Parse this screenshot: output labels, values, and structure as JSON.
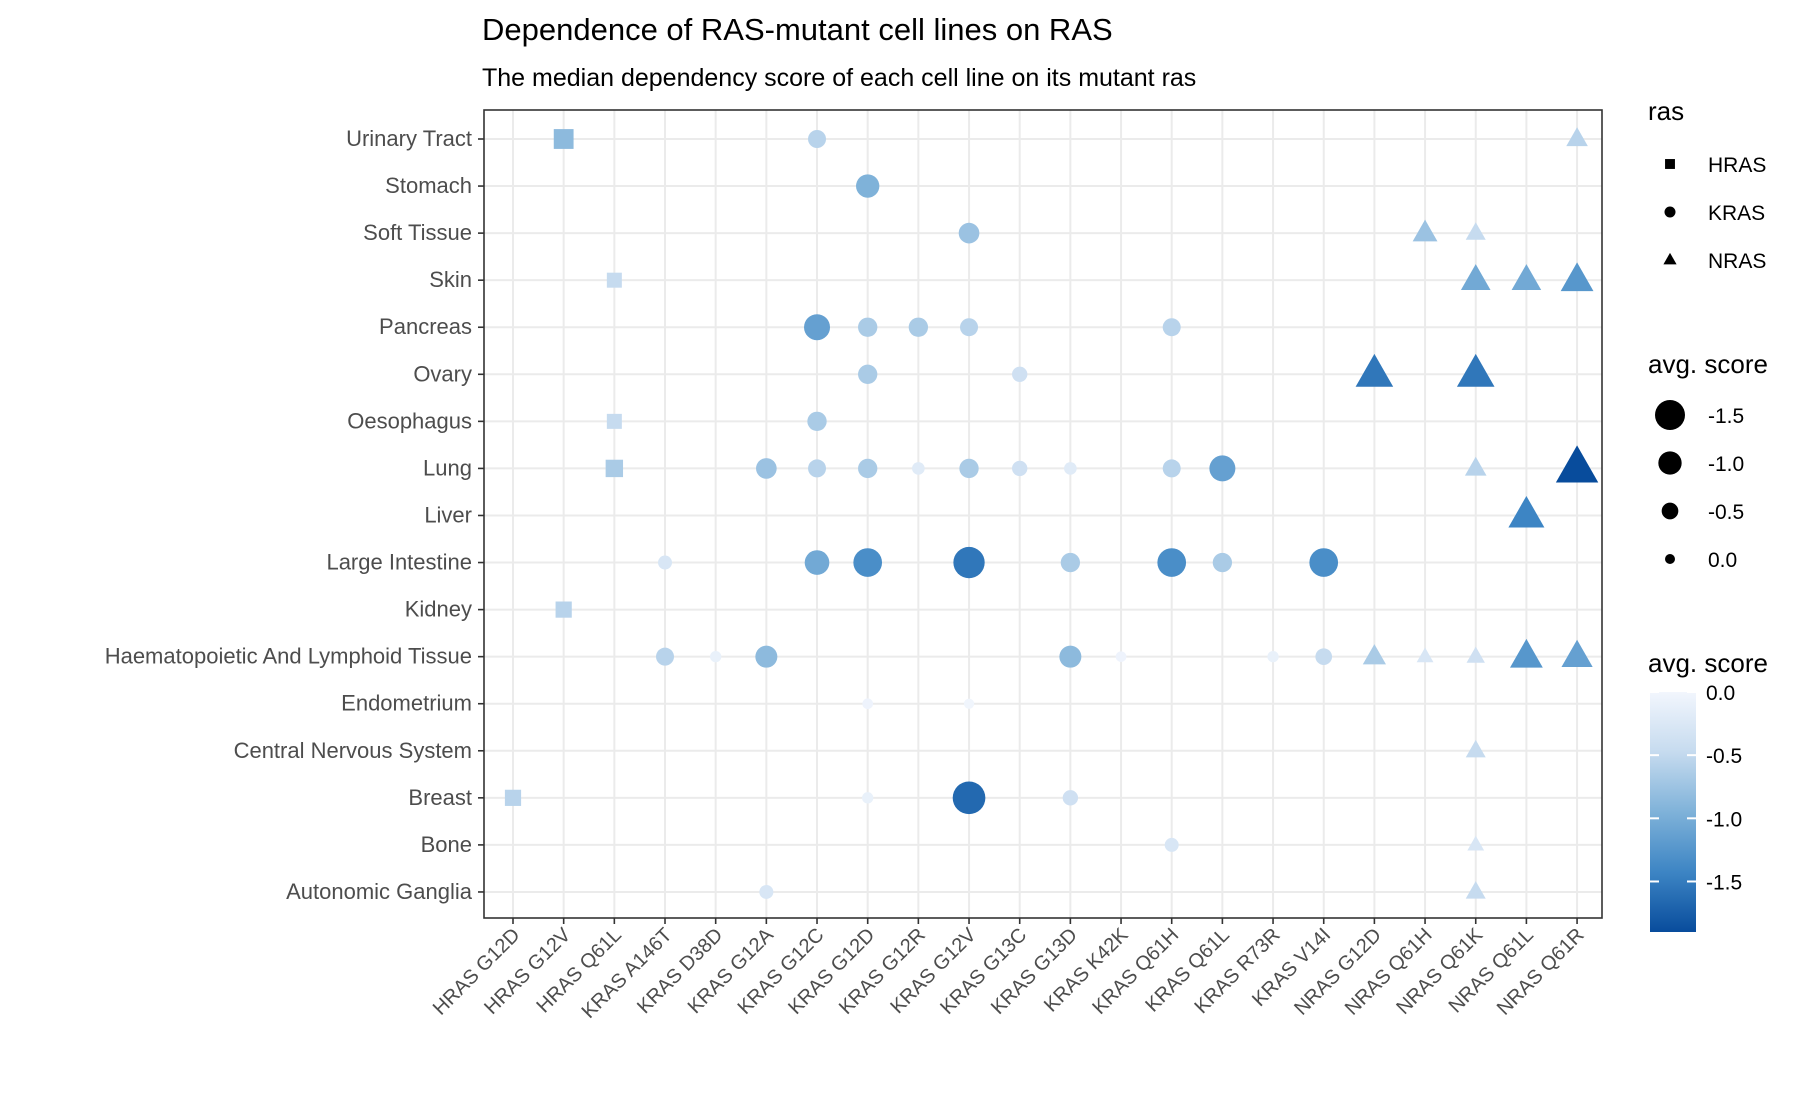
{
  "chart_data": {
    "type": "scatter",
    "title": "Dependence of RAS-mutant cell lines on RAS",
    "subtitle": "The median dependency score of each cell line on its mutant ras",
    "xlabel": "",
    "ylabel": "",
    "x_categories": [
      "HRAS G12D",
      "HRAS G12V",
      "HRAS Q61L",
      "KRAS A146T",
      "KRAS D38D",
      "KRAS G12A",
      "KRAS G12C",
      "KRAS G12D",
      "KRAS G12R",
      "KRAS G12V",
      "KRAS G13C",
      "KRAS G13D",
      "KRAS K42K",
      "KRAS Q61H",
      "KRAS Q61L",
      "KRAS R73R",
      "KRAS V14I",
      "NRAS G12D",
      "NRAS Q61H",
      "NRAS Q61K",
      "NRAS Q61L",
      "NRAS Q61R"
    ],
    "y_categories": [
      "Autonomic Ganglia",
      "Bone",
      "Breast",
      "Central Nervous System",
      "Endometrium",
      "Haematopoietic And Lymphoid Tissue",
      "Kidney",
      "Large Intestine",
      "Liver",
      "Lung",
      "Oesophagus",
      "Ovary",
      "Pancreas",
      "Skin",
      "Soft Tissue",
      "Stomach",
      "Urinary Tract"
    ],
    "grid": true,
    "points": [
      {
        "x": "HRAS G12V",
        "y": "Urinary Tract",
        "ras": "HRAS",
        "score": -0.9
      },
      {
        "x": "KRAS G12C",
        "y": "Urinary Tract",
        "ras": "KRAS",
        "score": -0.6
      },
      {
        "x": "NRAS Q61R",
        "y": "Urinary Tract",
        "ras": "NRAS",
        "score": -0.6
      },
      {
        "x": "KRAS G12D",
        "y": "Stomach",
        "ras": "KRAS",
        "score": -1.0
      },
      {
        "x": "KRAS G12V",
        "y": "Soft Tissue",
        "ras": "KRAS",
        "score": -0.8
      },
      {
        "x": "NRAS Q61H",
        "y": "Soft Tissue",
        "ras": "NRAS",
        "score": -0.8
      },
      {
        "x": "NRAS Q61K",
        "y": "Soft Tissue",
        "ras": "NRAS",
        "score": -0.5
      },
      {
        "x": "HRAS Q61L",
        "y": "Skin",
        "ras": "HRAS",
        "score": -0.5
      },
      {
        "x": "NRAS Q61K",
        "y": "Skin",
        "ras": "NRAS",
        "score": -1.1
      },
      {
        "x": "NRAS Q61L",
        "y": "Skin",
        "ras": "NRAS",
        "score": -1.1
      },
      {
        "x": "NRAS Q61R",
        "y": "Skin",
        "ras": "NRAS",
        "score": -1.3
      },
      {
        "x": "KRAS G12C",
        "y": "Pancreas",
        "ras": "KRAS",
        "score": -1.2
      },
      {
        "x": "KRAS G12D",
        "y": "Pancreas",
        "ras": "KRAS",
        "score": -0.7
      },
      {
        "x": "KRAS G12R",
        "y": "Pancreas",
        "ras": "KRAS",
        "score": -0.7
      },
      {
        "x": "KRAS G12V",
        "y": "Pancreas",
        "ras": "KRAS",
        "score": -0.6
      },
      {
        "x": "KRAS Q61H",
        "y": "Pancreas",
        "ras": "KRAS",
        "score": -0.6
      },
      {
        "x": "KRAS G12D",
        "y": "Ovary",
        "ras": "KRAS",
        "score": -0.7
      },
      {
        "x": "KRAS G13C",
        "y": "Ovary",
        "ras": "KRAS",
        "score": -0.4
      },
      {
        "x": "NRAS G12D",
        "y": "Ovary",
        "ras": "NRAS",
        "score": -1.6
      },
      {
        "x": "NRAS Q61K",
        "y": "Ovary",
        "ras": "NRAS",
        "score": -1.6
      },
      {
        "x": "HRAS Q61L",
        "y": "Oesophagus",
        "ras": "HRAS",
        "score": -0.5
      },
      {
        "x": "KRAS G12C",
        "y": "Oesophagus",
        "ras": "KRAS",
        "score": -0.7
      },
      {
        "x": "HRAS Q61L",
        "y": "Lung",
        "ras": "HRAS",
        "score": -0.7
      },
      {
        "x": "KRAS G12A",
        "y": "Lung",
        "ras": "KRAS",
        "score": -0.8
      },
      {
        "x": "KRAS G12C",
        "y": "Lung",
        "ras": "KRAS",
        "score": -0.6
      },
      {
        "x": "KRAS G12D",
        "y": "Lung",
        "ras": "KRAS",
        "score": -0.7
      },
      {
        "x": "KRAS G12R",
        "y": "Lung",
        "ras": "KRAS",
        "score": -0.2
      },
      {
        "x": "KRAS G12V",
        "y": "Lung",
        "ras": "KRAS",
        "score": -0.7
      },
      {
        "x": "KRAS G13C",
        "y": "Lung",
        "ras": "KRAS",
        "score": -0.4
      },
      {
        "x": "KRAS G13D",
        "y": "Lung",
        "ras": "KRAS",
        "score": -0.2
      },
      {
        "x": "KRAS Q61H",
        "y": "Lung",
        "ras": "KRAS",
        "score": -0.6
      },
      {
        "x": "KRAS Q61L",
        "y": "Lung",
        "ras": "KRAS",
        "score": -1.2
      },
      {
        "x": "NRAS Q61K",
        "y": "Lung",
        "ras": "NRAS",
        "score": -0.6
      },
      {
        "x": "NRAS Q61R",
        "y": "Lung",
        "ras": "NRAS",
        "score": -1.9
      },
      {
        "x": "NRAS Q61L",
        "y": "Liver",
        "ras": "NRAS",
        "score": -1.5
      },
      {
        "x": "KRAS A146T",
        "y": "Large Intestine",
        "ras": "KRAS",
        "score": -0.3
      },
      {
        "x": "KRAS G12C",
        "y": "Large Intestine",
        "ras": "KRAS",
        "score": -1.1
      },
      {
        "x": "KRAS G12D",
        "y": "Large Intestine",
        "ras": "KRAS",
        "score": -1.4
      },
      {
        "x": "KRAS G12V",
        "y": "Large Intestine",
        "ras": "KRAS",
        "score": -1.6
      },
      {
        "x": "KRAS G13D",
        "y": "Large Intestine",
        "ras": "KRAS",
        "score": -0.7
      },
      {
        "x": "KRAS Q61H",
        "y": "Large Intestine",
        "ras": "KRAS",
        "score": -1.4
      },
      {
        "x": "KRAS Q61L",
        "y": "Large Intestine",
        "ras": "KRAS",
        "score": -0.7
      },
      {
        "x": "KRAS V14I",
        "y": "Large Intestine",
        "ras": "KRAS",
        "score": -1.4
      },
      {
        "x": "HRAS G12V",
        "y": "Kidney",
        "ras": "HRAS",
        "score": -0.6
      },
      {
        "x": "KRAS A146T",
        "y": "Haematopoietic And Lymphoid Tissue",
        "ras": "KRAS",
        "score": -0.6
      },
      {
        "x": "KRAS D38D",
        "y": "Haematopoietic And Lymphoid Tissue",
        "ras": "KRAS",
        "score": -0.1
      },
      {
        "x": "KRAS G12A",
        "y": "Haematopoietic And Lymphoid Tissue",
        "ras": "KRAS",
        "score": -0.9
      },
      {
        "x": "KRAS G13D",
        "y": "Haematopoietic And Lymphoid Tissue",
        "ras": "KRAS",
        "score": -0.9
      },
      {
        "x": "KRAS K42K",
        "y": "Haematopoietic And Lymphoid Tissue",
        "ras": "KRAS",
        "score": -0.05
      },
      {
        "x": "KRAS R73R",
        "y": "Haematopoietic And Lymphoid Tissue",
        "ras": "KRAS",
        "score": -0.1
      },
      {
        "x": "KRAS V14I",
        "y": "Haematopoietic And Lymphoid Tissue",
        "ras": "KRAS",
        "score": -0.5
      },
      {
        "x": "NRAS G12D",
        "y": "Haematopoietic And Lymphoid Tissue",
        "ras": "NRAS",
        "score": -0.7
      },
      {
        "x": "NRAS Q61H",
        "y": "Haematopoietic And Lymphoid Tissue",
        "ras": "NRAS",
        "score": -0.3
      },
      {
        "x": "NRAS Q61K",
        "y": "Haematopoietic And Lymphoid Tissue",
        "ras": "NRAS",
        "score": -0.4
      },
      {
        "x": "NRAS Q61L",
        "y": "Haematopoietic And Lymphoid Tissue",
        "ras": "NRAS",
        "score": -1.3
      },
      {
        "x": "NRAS Q61R",
        "y": "Haematopoietic And Lymphoid Tissue",
        "ras": "NRAS",
        "score": -1.2
      },
      {
        "x": "KRAS G12D",
        "y": "Endometrium",
        "ras": "KRAS",
        "score": -0.05
      },
      {
        "x": "KRAS G12V",
        "y": "Endometrium",
        "ras": "KRAS",
        "score": -0.02
      },
      {
        "x": "NRAS Q61K",
        "y": "Central Nervous System",
        "ras": "NRAS",
        "score": -0.5
      },
      {
        "x": "HRAS G12D",
        "y": "Breast",
        "ras": "HRAS",
        "score": -0.6
      },
      {
        "x": "KRAS G12D",
        "y": "Breast",
        "ras": "KRAS",
        "score": -0.1
      },
      {
        "x": "KRAS G12V",
        "y": "Breast",
        "ras": "KRAS",
        "score": -1.7
      },
      {
        "x": "KRAS G13D",
        "y": "Breast",
        "ras": "KRAS",
        "score": -0.4
      },
      {
        "x": "KRAS Q61H",
        "y": "Bone",
        "ras": "KRAS",
        "score": -0.3
      },
      {
        "x": "NRAS Q61K",
        "y": "Bone",
        "ras": "NRAS",
        "score": -0.3
      },
      {
        "x": "KRAS G12A",
        "y": "Autonomic Ganglia",
        "ras": "KRAS",
        "score": -0.3
      },
      {
        "x": "NRAS Q61K",
        "y": "Autonomic Ganglia",
        "ras": "NRAS",
        "score": -0.5
      }
    ],
    "legend": {
      "placement": "right",
      "shape": {
        "title": "ras",
        "items": [
          {
            "label": "HRAS",
            "shape": "square"
          },
          {
            "label": "KRAS",
            "shape": "circle"
          },
          {
            "label": "NRAS",
            "shape": "triangle"
          }
        ]
      },
      "size": {
        "title": "avg. score",
        "items": [
          {
            "label": "-1.5",
            "value": -1.5
          },
          {
            "label": "-1.0",
            "value": -1.0
          },
          {
            "label": "-0.5",
            "value": -0.5
          },
          {
            "label": "0.0",
            "value": 0.0
          }
        ]
      },
      "color": {
        "title": "avg. score",
        "range": [
          -1.9,
          0.0
        ],
        "ticks": [
          {
            "label": "0.0",
            "value": 0.0
          },
          {
            "label": "-0.5",
            "value": -0.5
          },
          {
            "label": "-1.0",
            "value": -1.0
          },
          {
            "label": "-1.5",
            "value": -1.5
          }
        ],
        "color_low": "#084c9c",
        "color_high": "#f2f6fd"
      }
    }
  }
}
